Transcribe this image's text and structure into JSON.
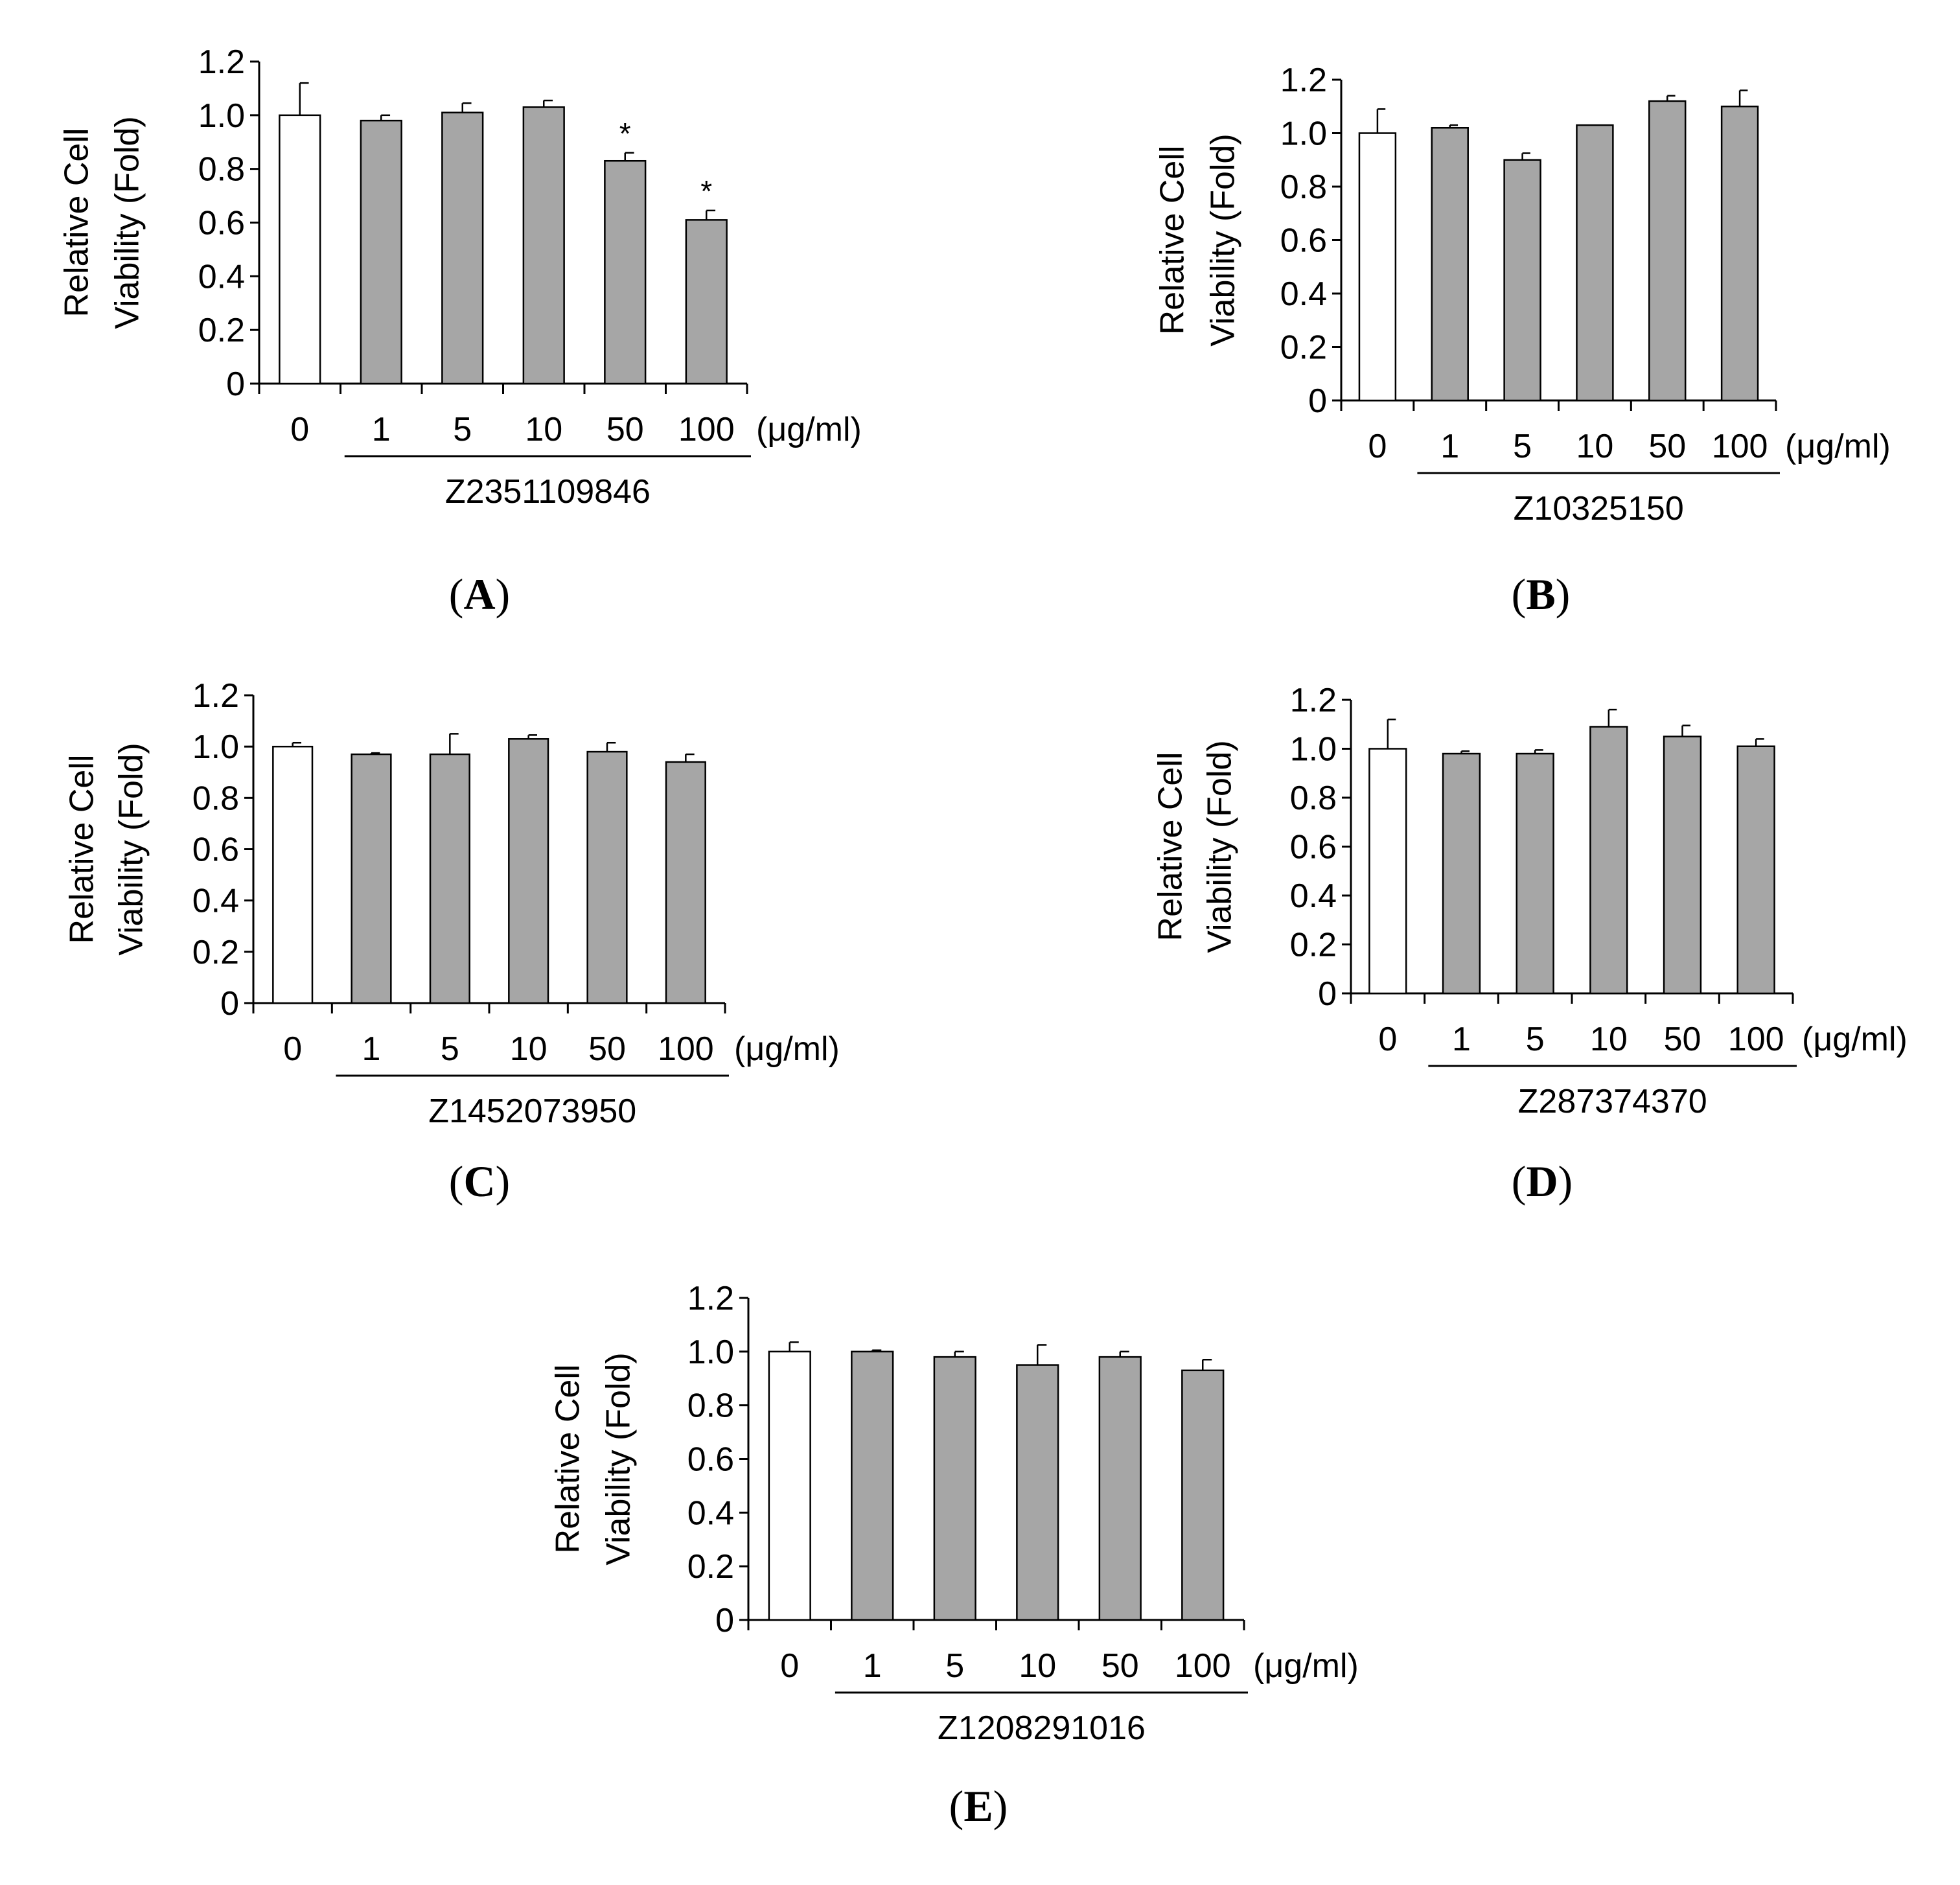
{
  "chart_data": [
    {
      "panel_label": "(A)",
      "type": "bar",
      "categories": [
        "0",
        "1",
        "5",
        "10",
        "50",
        "100"
      ],
      "values": [
        1.0,
        0.98,
        1.01,
        1.03,
        0.83,
        0.61
      ],
      "errors": [
        0.12,
        0.02,
        0.035,
        0.025,
        0.03,
        0.035
      ],
      "significance": [
        "",
        "",
        "",
        "",
        "*",
        "*"
      ],
      "bar_colors": [
        "#ffffff",
        "#a6a6a6",
        "#a6a6a6",
        "#a6a6a6",
        "#a6a6a6",
        "#a6a6a6"
      ],
      "ylabel_line1": "Relative Cell",
      "ylabel_line2": "Viability (Fold)",
      "unit": "(μg/ml)",
      "compound": "Z2351109846",
      "yticks": [
        "0",
        "0.2",
        "0.4",
        "0.6",
        "0.8",
        "1.0",
        "1.2"
      ],
      "ylim": [
        0,
        1.2
      ]
    },
    {
      "panel_label": "(B)",
      "type": "bar",
      "categories": [
        "0",
        "1",
        "5",
        "10",
        "50",
        "100"
      ],
      "values": [
        1.0,
        1.02,
        0.9,
        1.03,
        1.12,
        1.1
      ],
      "errors": [
        0.09,
        0.01,
        0.025,
        0.0,
        0.02,
        0.06
      ],
      "significance": [
        "",
        "",
        "",
        "",
        "",
        ""
      ],
      "bar_colors": [
        "#ffffff",
        "#a6a6a6",
        "#a6a6a6",
        "#a6a6a6",
        "#a6a6a6",
        "#a6a6a6"
      ],
      "ylabel_line1": "Relative Cell",
      "ylabel_line2": "Viability (Fold)",
      "unit": "(μg/ml)",
      "compound": "Z10325150",
      "yticks": [
        "0",
        "0.2",
        "0.4",
        "0.6",
        "0.8",
        "1.0",
        "1.2"
      ],
      "ylim": [
        0,
        1.2
      ]
    },
    {
      "panel_label": "(C)",
      "type": "bar",
      "categories": [
        "0",
        "1",
        "5",
        "10",
        "50",
        "100"
      ],
      "values": [
        1.0,
        0.97,
        0.97,
        1.03,
        0.98,
        0.94
      ],
      "errors": [
        0.015,
        0.005,
        0.08,
        0.015,
        0.035,
        0.03
      ],
      "significance": [
        "",
        "",
        "",
        "",
        "",
        ""
      ],
      "bar_colors": [
        "#ffffff",
        "#a6a6a6",
        "#a6a6a6",
        "#a6a6a6",
        "#a6a6a6",
        "#a6a6a6"
      ],
      "ylabel_line1": "Relative Cell",
      "ylabel_line2": "Viability (Fold)",
      "unit": "(μg/ml)",
      "compound": "Z1452073950",
      "yticks": [
        "0",
        "0.2",
        "0.4",
        "0.6",
        "0.8",
        "1.0",
        "1.2"
      ],
      "ylim": [
        0,
        1.2
      ]
    },
    {
      "panel_label": "(D)",
      "type": "bar",
      "categories": [
        "0",
        "1",
        "5",
        "10",
        "50",
        "100"
      ],
      "values": [
        1.0,
        0.98,
        0.98,
        1.09,
        1.05,
        1.01
      ],
      "errors": [
        0.12,
        0.01,
        0.015,
        0.07,
        0.045,
        0.03
      ],
      "significance": [
        "",
        "",
        "",
        "",
        "",
        ""
      ],
      "bar_colors": [
        "#ffffff",
        "#a6a6a6",
        "#a6a6a6",
        "#a6a6a6",
        "#a6a6a6",
        "#a6a6a6"
      ],
      "ylabel_line1": "Relative Cell",
      "ylabel_line2": "Viability (Fold)",
      "unit": "(μg/ml)",
      "compound": "Z287374370",
      "yticks": [
        "0",
        "0.2",
        "0.4",
        "0.6",
        "0.8",
        "1.0",
        "1.2"
      ],
      "ylim": [
        0,
        1.2
      ]
    },
    {
      "panel_label": "(E)",
      "type": "bar",
      "categories": [
        "0",
        "1",
        "5",
        "10",
        "50",
        "100"
      ],
      "values": [
        1.0,
        1.0,
        0.98,
        0.95,
        0.98,
        0.93
      ],
      "errors": [
        0.035,
        0.005,
        0.02,
        0.075,
        0.02,
        0.04
      ],
      "significance": [
        "",
        "",
        "",
        "",
        "",
        ""
      ],
      "bar_colors": [
        "#ffffff",
        "#a6a6a6",
        "#a6a6a6",
        "#a6a6a6",
        "#a6a6a6",
        "#a6a6a6"
      ],
      "ylabel_line1": "Relative Cell",
      "ylabel_line2": "Viability (Fold)",
      "unit": "(μg/ml)",
      "compound": "Z1208291016",
      "yticks": [
        "0",
        "0.2",
        "0.4",
        "0.6",
        "0.8",
        "1.0",
        "1.2"
      ],
      "ylim": [
        0,
        1.2
      ]
    }
  ]
}
